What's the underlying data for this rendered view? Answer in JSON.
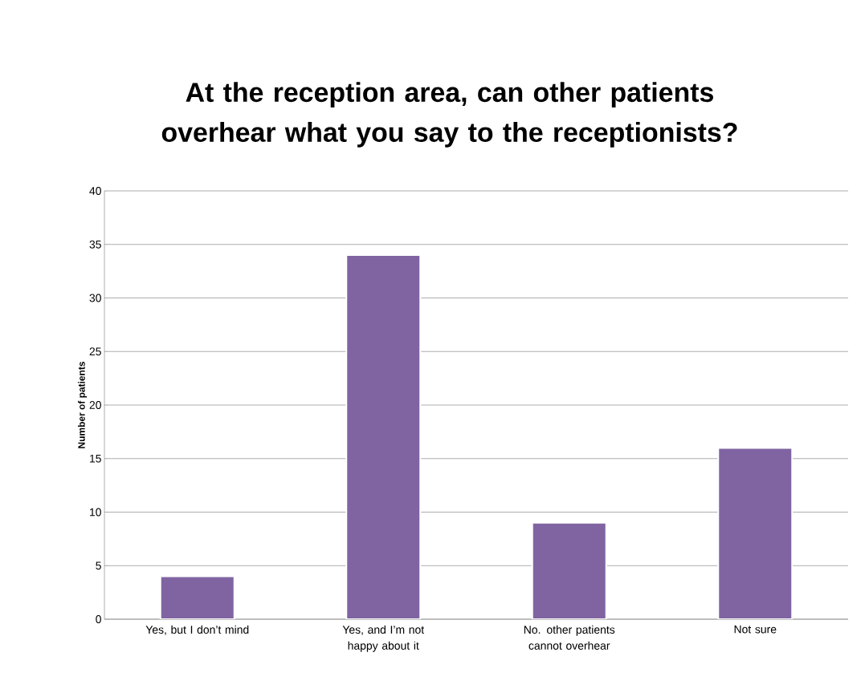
{
  "chart_data": {
    "type": "bar",
    "title": "At the reception area, can other patients overhear what you say to the receptionists?",
    "ylabel": "Number of patients",
    "categories": [
      "Yes, but I don’t mind",
      "Yes, and I’m not happy about it",
      "No. other patients cannot overhear",
      "Not sure"
    ],
    "values": [
      4,
      34,
      9,
      16
    ],
    "color": "#8064a2",
    "ylim": [
      0,
      40
    ],
    "yticks": [
      0,
      5,
      10,
      15,
      20,
      25,
      30,
      35,
      40
    ],
    "grid": "y"
  }
}
